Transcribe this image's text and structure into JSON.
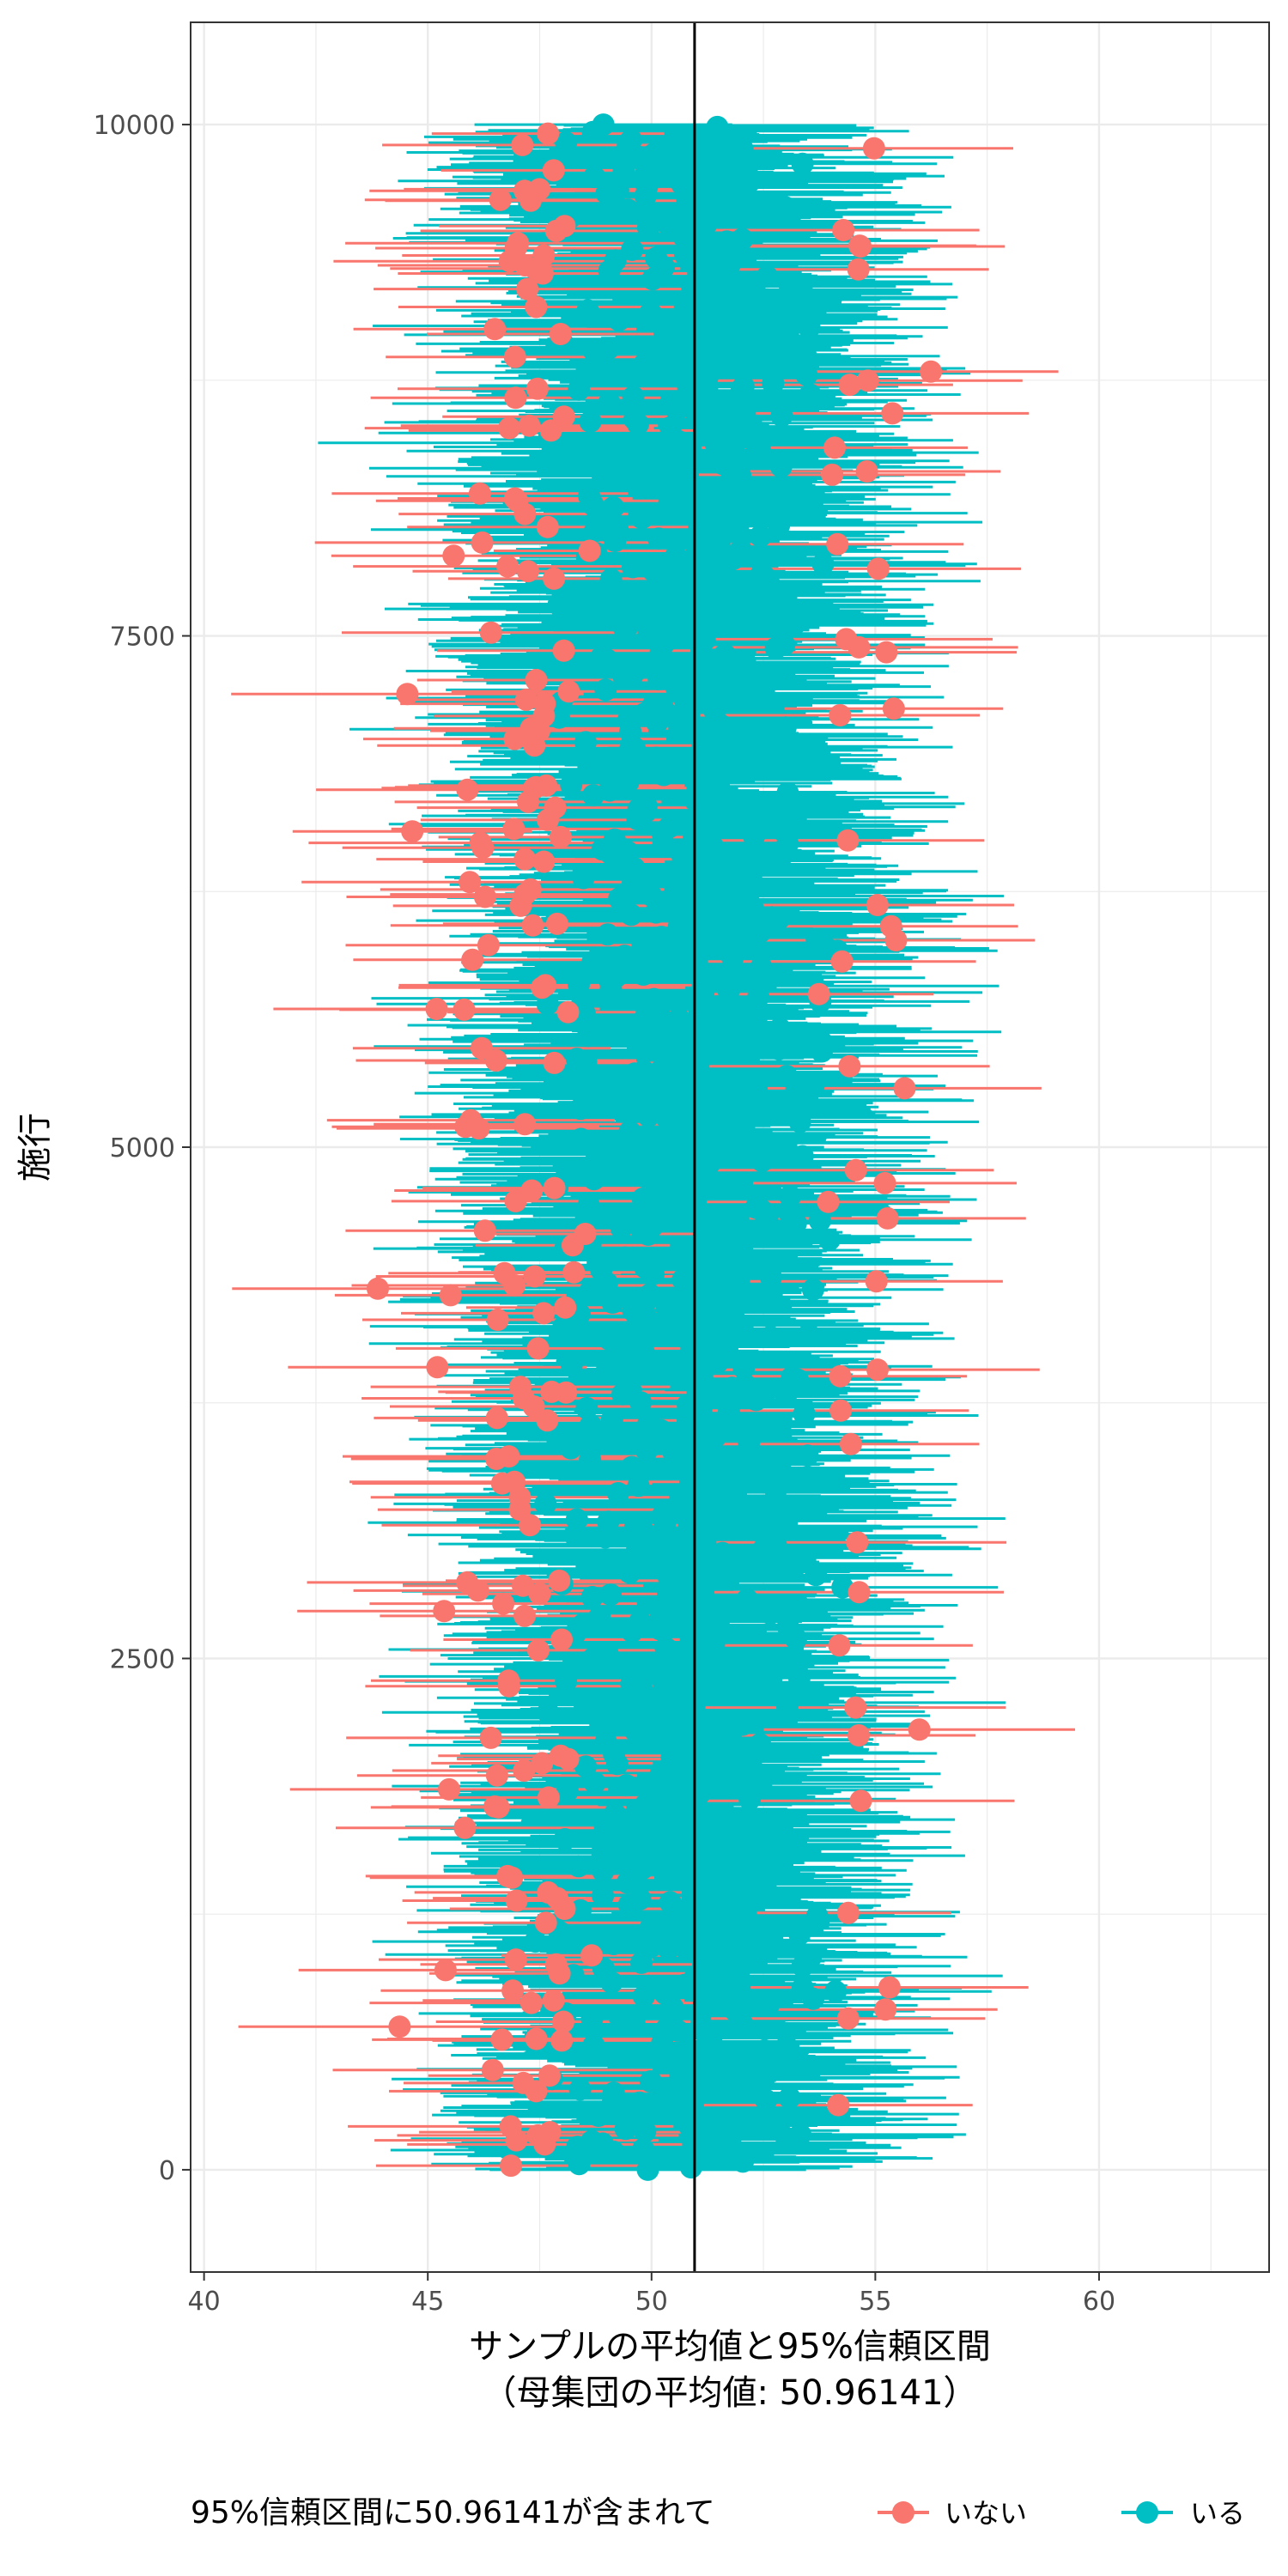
{
  "chart_data": {
    "type": "scatter",
    "subtype": "confidence-interval-whisker-plot",
    "title": "",
    "xlabel": "サンプルの平均値と95%信頼区間",
    "xlabel_sub": "（母集団の平均値: 50.96141）",
    "ylabel": "施行",
    "xlim": [
      39.7,
      63.8
    ],
    "ylim": [
      -500,
      10500
    ],
    "x_ticks": [
      40,
      45,
      50,
      55,
      60
    ],
    "y_ticks": [
      0,
      2500,
      5000,
      7500,
      10000
    ],
    "x_tick_labels": [
      "40",
      "45",
      "50",
      "55",
      "60"
    ],
    "y_tick_labels": [
      "0",
      "2500",
      "5000",
      "7500",
      "10000"
    ],
    "population_mean": 50.96141,
    "trials": 10000,
    "interval_half_width_range": [
      2.5,
      4.5
    ],
    "sample_mean_range": [
      43.0,
      58.0
    ],
    "grid": true,
    "theme": "bw",
    "legend": {
      "title": "95%信頼区間に50.96141が含まれて",
      "position": "bottom",
      "entries": [
        {
          "label": "いない",
          "color": "#F8766D"
        },
        {
          "label": "いる",
          "color": "#00BFC4"
        }
      ]
    },
    "series": [
      {
        "name": "いない",
        "color": "#F8766D",
        "count_approx": 500
      },
      {
        "name": "いる",
        "color": "#00BFC4",
        "count_approx": 9500
      }
    ]
  }
}
